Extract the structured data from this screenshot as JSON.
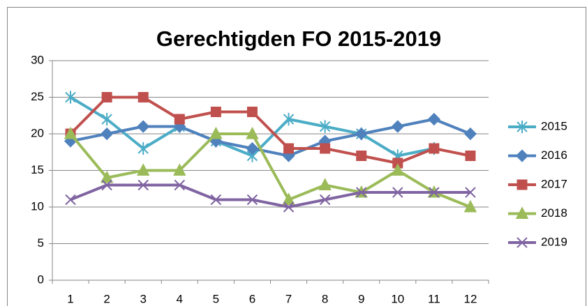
{
  "chart_data": {
    "type": "line",
    "title": "Gerechtigden FO 2015-2019",
    "categories": [
      1,
      2,
      3,
      4,
      5,
      6,
      7,
      8,
      9,
      10,
      11,
      12
    ],
    "series": [
      {
        "name": "2015",
        "color": "#4bacc6",
        "marker": "star",
        "values": [
          25,
          22,
          18,
          21,
          19,
          17,
          22,
          21,
          20,
          17,
          18,
          null
        ]
      },
      {
        "name": "2016",
        "color": "#4f81bd",
        "marker": "diamond",
        "values": [
          19,
          20,
          21,
          21,
          19,
          18,
          17,
          19,
          20,
          21,
          22,
          20
        ]
      },
      {
        "name": "2017",
        "color": "#c0504d",
        "marker": "square",
        "values": [
          20,
          25,
          25,
          22,
          23,
          23,
          18,
          18,
          17,
          16,
          18,
          17
        ]
      },
      {
        "name": "2018",
        "color": "#9bbb59",
        "marker": "triangle",
        "values": [
          20,
          14,
          15,
          15,
          20,
          20,
          11,
          13,
          12,
          15,
          12,
          10
        ]
      },
      {
        "name": "2019",
        "color": "#8064a2",
        "marker": "x",
        "values": [
          11,
          13,
          13,
          13,
          11,
          11,
          10,
          11,
          12,
          12,
          12,
          12
        ]
      }
    ],
    "ylim": [
      0,
      30
    ],
    "yticks": [
      0,
      5,
      10,
      15,
      20,
      25,
      30
    ],
    "grid": true,
    "legend": "right"
  }
}
